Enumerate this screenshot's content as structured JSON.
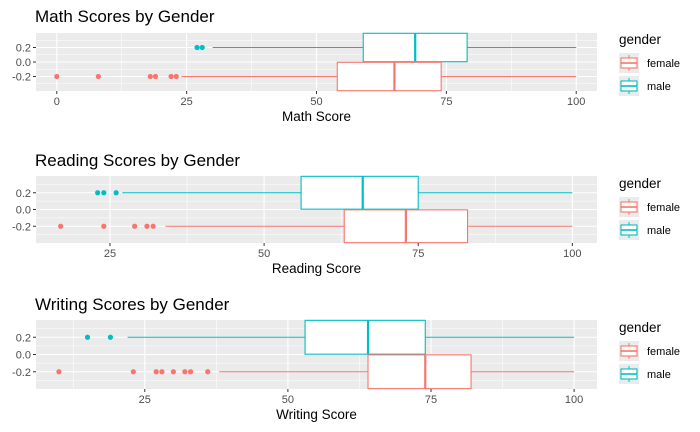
{
  "colors": {
    "female": "#F8766D",
    "male": "#00BFC4",
    "panel": "#EBEBEB",
    "grid": "#FFFFFF"
  },
  "chart_data": [
    {
      "type": "boxplot",
      "title": "Math Scores by Gender",
      "xlabel": "Math Score",
      "xlim": [
        -4,
        104
      ],
      "ylim": [
        -0.4,
        0.4
      ],
      "xticks": [
        0,
        25,
        50,
        75,
        100
      ],
      "yticks": [
        0.2,
        0.0,
        -0.2
      ],
      "ytick_labels": [
        "0.2",
        "0.0",
        "-0.2"
      ],
      "legend": {
        "title": "gender",
        "position": "right",
        "entries": [
          "female",
          "male"
        ]
      },
      "series": [
        {
          "name": "male",
          "y": 0.2,
          "whisker_low": 30,
          "q1": 59,
          "median": 69,
          "q3": 79,
          "whisker_high": 100,
          "outliers": [
            27,
            28
          ]
        },
        {
          "name": "female",
          "y": -0.2,
          "whisker_low": 24,
          "q1": 54,
          "median": 65,
          "q3": 74,
          "whisker_high": 100,
          "outliers": [
            0,
            8,
            18,
            19,
            22,
            23
          ]
        }
      ]
    },
    {
      "type": "boxplot",
      "title": "Reading Scores by Gender",
      "xlabel": "Reading Score",
      "xlim": [
        13,
        104
      ],
      "ylim": [
        -0.4,
        0.4
      ],
      "xticks": [
        25,
        50,
        75,
        100
      ],
      "yticks": [
        0.2,
        0.0,
        -0.2
      ],
      "ytick_labels": [
        "0.2",
        "0.0",
        "-0.2"
      ],
      "legend": {
        "title": "gender",
        "position": "right",
        "entries": [
          "female",
          "male"
        ]
      },
      "series": [
        {
          "name": "male",
          "y": 0.2,
          "whisker_low": 27,
          "q1": 56,
          "median": 66,
          "q3": 75,
          "whisker_high": 100,
          "outliers": [
            23,
            24,
            26
          ]
        },
        {
          "name": "female",
          "y": -0.2,
          "whisker_low": 34,
          "q1": 63,
          "median": 73,
          "q3": 83,
          "whisker_high": 100,
          "outliers": [
            17,
            24,
            29,
            31,
            32
          ]
        }
      ]
    },
    {
      "type": "boxplot",
      "title": "Writing Scores by Gender",
      "xlabel": "Writing Score",
      "xlim": [
        6,
        104
      ],
      "ylim": [
        -0.4,
        0.4
      ],
      "xticks": [
        25,
        50,
        75,
        100
      ],
      "yticks": [
        0.2,
        0.0,
        -0.2
      ],
      "ytick_labels": [
        "0.2",
        "0.0",
        "-0.2"
      ],
      "legend": {
        "title": "gender",
        "position": "right",
        "entries": [
          "female",
          "male"
        ]
      },
      "series": [
        {
          "name": "male",
          "y": 0.2,
          "whisker_low": 22,
          "q1": 53,
          "median": 64,
          "q3": 74,
          "whisker_high": 100,
          "outliers": [
            15,
            19
          ]
        },
        {
          "name": "female",
          "y": -0.2,
          "whisker_low": 38,
          "q1": 64,
          "median": 74,
          "q3": 82,
          "whisker_high": 100,
          "outliers": [
            10,
            23,
            27,
            28,
            30,
            32,
            33,
            36
          ]
        }
      ]
    }
  ]
}
